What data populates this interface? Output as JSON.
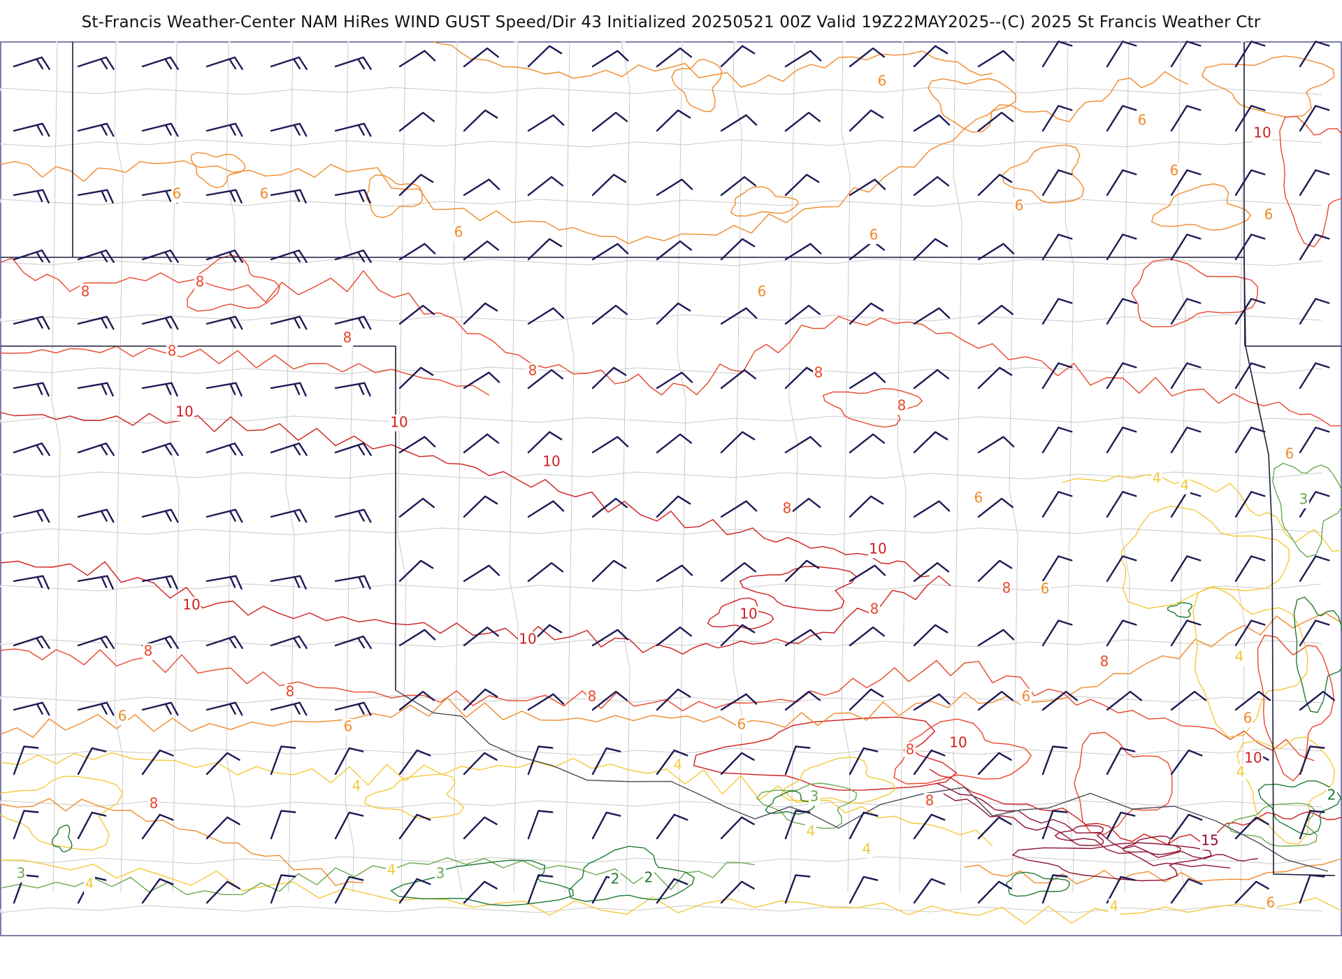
{
  "title": "St-Francis Weather-Center NAM HiRes WIND GUST Speed/Dir  43 Initialized 20250521 00Z Valid 19Z22MAY2025--(C) 2025 St Francis Weather Ctr",
  "colors": {
    "barb": "#1e1a55",
    "frame": "#2a2a7a",
    "state_border": "#1c1c3a",
    "county_line": "#c9c9c9",
    "river": "#4a4a5a",
    "contour_2": "#1f7a32",
    "contour_3": "#6aa84f",
    "contour_4": "#f3c93a",
    "contour_6": "#f08a2a",
    "contour_8": "#e8462a",
    "contour_10": "#cf1c1c",
    "contour_15": "#8e1030"
  },
  "contour_labels": [
    {
      "text": "2",
      "level": 2
    },
    {
      "text": "2",
      "level": 2
    },
    {
      "text": "2",
      "level": 2
    },
    {
      "text": "3",
      "level": 3
    },
    {
      "text": "3",
      "level": 3
    },
    {
      "text": "3",
      "level": 3
    },
    {
      "text": "3",
      "level": 3
    },
    {
      "text": "4",
      "level": 4
    },
    {
      "text": "4",
      "level": 4
    },
    {
      "text": "4",
      "level": 4
    },
    {
      "text": "4",
      "level": 4
    },
    {
      "text": "4",
      "level": 4
    },
    {
      "text": "4",
      "level": 4
    },
    {
      "text": "4",
      "level": 4
    },
    {
      "text": "4",
      "level": 4
    },
    {
      "text": "4",
      "level": 4
    },
    {
      "text": "4",
      "level": 4
    },
    {
      "text": "4",
      "level": 4
    },
    {
      "text": "6",
      "level": 6
    },
    {
      "text": "6",
      "level": 6
    },
    {
      "text": "6",
      "level": 6
    },
    {
      "text": "6",
      "level": 6
    },
    {
      "text": "6",
      "level": 6
    },
    {
      "text": "6",
      "level": 6
    },
    {
      "text": "6",
      "level": 6
    },
    {
      "text": "6",
      "level": 6
    },
    {
      "text": "6",
      "level": 6
    },
    {
      "text": "6",
      "level": 6
    },
    {
      "text": "6",
      "level": 6
    },
    {
      "text": "6",
      "level": 6
    },
    {
      "text": "6",
      "level": 6
    },
    {
      "text": "6",
      "level": 6
    },
    {
      "text": "6",
      "level": 6
    },
    {
      "text": "6",
      "level": 6
    },
    {
      "text": "6",
      "level": 6
    },
    {
      "text": "6",
      "level": 6
    },
    {
      "text": "6",
      "level": 6
    },
    {
      "text": "8",
      "level": 8
    },
    {
      "text": "8",
      "level": 8
    },
    {
      "text": "8",
      "level": 8
    },
    {
      "text": "8",
      "level": 8
    },
    {
      "text": "8",
      "level": 8
    },
    {
      "text": "8",
      "level": 8
    },
    {
      "text": "8",
      "level": 8
    },
    {
      "text": "8",
      "level": 8
    },
    {
      "text": "8",
      "level": 8
    },
    {
      "text": "8",
      "level": 8
    },
    {
      "text": "8",
      "level": 8
    },
    {
      "text": "8",
      "level": 8
    },
    {
      "text": "8",
      "level": 8
    },
    {
      "text": "8",
      "level": 8
    },
    {
      "text": "8",
      "level": 8
    },
    {
      "text": "8",
      "level": 8
    },
    {
      "text": "8",
      "level": 8
    },
    {
      "text": "10",
      "level": 10
    },
    {
      "text": "10",
      "level": 10
    },
    {
      "text": "10",
      "level": 10
    },
    {
      "text": "10",
      "level": 10
    },
    {
      "text": "10",
      "level": 10
    },
    {
      "text": "10",
      "level": 10
    },
    {
      "text": "10",
      "level": 10
    },
    {
      "text": "10",
      "level": 10
    },
    {
      "text": "10",
      "level": 10
    },
    {
      "text": "10",
      "level": 10
    },
    {
      "text": "15",
      "level": 15
    }
  ]
}
